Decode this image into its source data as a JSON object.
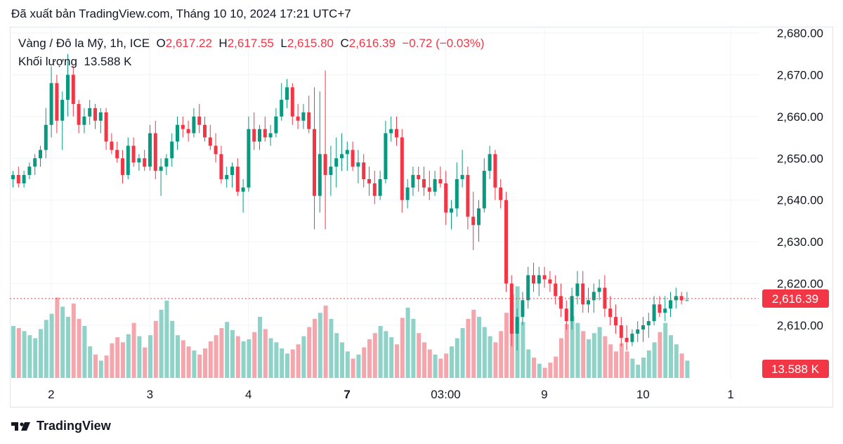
{
  "header": {
    "published": "Đã xuất bản TradingView.com, Tháng 10 10, 2024 17:21 UTC+7"
  },
  "legend": {
    "symbol": "Vàng / Đô la Mỹ, 1h, ICE",
    "o_label": "O",
    "o_value": "2,617.22",
    "h_label": "H",
    "h_value": "2,617.55",
    "l_label": "L",
    "l_value": "2,615.80",
    "c_label": "C",
    "c_value": "2,616.39",
    "change": "−0.72 (−0.03%)",
    "volume_label": "Khối lượng",
    "volume_value": "13.588 K"
  },
  "brand": {
    "name": "TradingView"
  },
  "colors": {
    "up": "#089981",
    "down": "#f23645",
    "up_vol": "#8fd3c8",
    "down_vol": "#f5a6ad",
    "grid": "#f0f3fa"
  },
  "chart_data": {
    "type": "candlestick",
    "title": "Vàng / Đô la Mỹ, 1h, ICE",
    "ylim": [
      2600,
      2684
    ],
    "y_ticks": [
      "2,680.00",
      "2,670.00",
      "2,660.00",
      "2,650.00",
      "2,640.00",
      "2,630.00",
      "2,620.00",
      "2,610.00"
    ],
    "y_tick_values": [
      2680,
      2670,
      2660,
      2650,
      2640,
      2630,
      2620,
      2610
    ],
    "x_ticks": [
      {
        "label": "2",
        "index": 8,
        "bold": false
      },
      {
        "label": "3",
        "index": 26,
        "bold": false
      },
      {
        "label": "4",
        "index": 44,
        "bold": false
      },
      {
        "label": "7",
        "index": 62,
        "bold": true
      },
      {
        "label": "03:00",
        "index": 80,
        "bold": false
      },
      {
        "label": "9",
        "index": 98,
        "bold": false
      },
      {
        "label": "10",
        "index": 116,
        "bold": false
      },
      {
        "label": "1",
        "index": 132,
        "bold": false
      }
    ],
    "last_price": 2616.39,
    "last_price_label": "2,616.39",
    "last_volume_label": "13.588 K",
    "candles": [
      [
        2645,
        2647,
        2643,
        2646,
        5.1
      ],
      [
        2646,
        2648,
        2643,
        2644,
        4.9
      ],
      [
        2644,
        2647,
        2643,
        2646,
        4.6
      ],
      [
        2646,
        2649,
        2645,
        2648,
        4.2
      ],
      [
        2648,
        2651,
        2646,
        2650,
        3.9
      ],
      [
        2650,
        2653,
        2648,
        2652,
        4.8
      ],
      [
        2652,
        2662,
        2650,
        2658,
        5.7
      ],
      [
        2658,
        2672,
        2655,
        2668,
        6.3
      ],
      [
        2668,
        2670,
        2656,
        2659,
        7.9
      ],
      [
        2659,
        2666,
        2652,
        2664,
        7.0
      ],
      [
        2664,
        2675,
        2660,
        2670,
        6.0
      ],
      [
        2670,
        2672,
        2660,
        2663,
        7.3
      ],
      [
        2663,
        2664,
        2656,
        2658,
        5.8
      ],
      [
        2658,
        2662,
        2656,
        2660,
        5.1
      ],
      [
        2660,
        2664,
        2658,
        2662,
        3.1
      ],
      [
        2662,
        2663,
        2657,
        2659,
        2.3
      ],
      [
        2659,
        2662,
        2656,
        2661,
        1.7
      ],
      [
        2661,
        2662,
        2652,
        2654,
        2.2
      ],
      [
        2654,
        2656,
        2651,
        2652,
        3.4
      ],
      [
        2652,
        2654,
        2649,
        2650,
        4.0
      ],
      [
        2650,
        2652,
        2644,
        2646,
        3.5
      ],
      [
        2646,
        2655,
        2645,
        2653,
        4.3
      ],
      [
        2653,
        2655,
        2648,
        2649,
        5.4
      ],
      [
        2649,
        2651,
        2647,
        2650,
        4.1
      ],
      [
        2650,
        2652,
        2647,
        2648,
        3.0
      ],
      [
        2648,
        2658,
        2647,
        2656,
        4.2
      ],
      [
        2656,
        2659,
        2645,
        2647,
        5.6
      ],
      [
        2647,
        2650,
        2641,
        2648,
        6.7
      ],
      [
        2648,
        2651,
        2646,
        2650,
        7.6
      ],
      [
        2650,
        2656,
        2648,
        2654,
        5.6
      ],
      [
        2654,
        2660,
        2652,
        2658,
        4.2
      ],
      [
        2658,
        2660,
        2655,
        2657,
        3.7
      ],
      [
        2657,
        2659,
        2654,
        2656,
        3.1
      ],
      [
        2656,
        2662,
        2655,
        2660,
        2.7
      ],
      [
        2660,
        2663,
        2656,
        2658,
        2.3
      ],
      [
        2658,
        2660,
        2654,
        2655,
        2.9
      ],
      [
        2655,
        2658,
        2652,
        2653,
        3.6
      ],
      [
        2653,
        2656,
        2649,
        2651,
        4.2
      ],
      [
        2651,
        2653,
        2644,
        2645,
        4.9
      ],
      [
        2645,
        2648,
        2643,
        2646,
        5.5
      ],
      [
        2646,
        2649,
        2643,
        2648,
        4.7
      ],
      [
        2648,
        2650,
        2641,
        2642,
        4.1
      ],
      [
        2642,
        2645,
        2637,
        2643,
        3.6
      ],
      [
        2643,
        2660,
        2642,
        2657,
        3.8
      ],
      [
        2657,
        2661,
        2652,
        2654,
        4.5
      ],
      [
        2654,
        2658,
        2652,
        2657,
        6.0
      ],
      [
        2657,
        2660,
        2654,
        2655,
        4.8
      ],
      [
        2655,
        2658,
        2653,
        2656,
        3.9
      ],
      [
        2656,
        2662,
        2655,
        2660,
        3.5
      ],
      [
        2660,
        2668,
        2659,
        2664,
        2.9
      ],
      [
        2664,
        2669,
        2662,
        2667,
        2.4
      ],
      [
        2667,
        2668,
        2658,
        2660,
        2.8
      ],
      [
        2660,
        2663,
        2657,
        2659,
        3.3
      ],
      [
        2659,
        2663,
        2657,
        2661,
        4.1
      ],
      [
        2661,
        2665,
        2656,
        2657,
        5.0
      ],
      [
        2657,
        2667,
        2633,
        2641,
        5.8
      ],
      [
        2641,
        2666,
        2637,
        2651,
        6.4
      ],
      [
        2651,
        2671,
        2633,
        2646,
        7.1
      ],
      [
        2646,
        2653,
        2641,
        2648,
        5.8
      ],
      [
        2648,
        2655,
        2643,
        2650,
        4.4
      ],
      [
        2650,
        2656,
        2647,
        2651,
        3.5
      ],
      [
        2651,
        2654,
        2647,
        2652,
        2.6
      ],
      [
        2652,
        2654,
        2647,
        2648,
        1.9
      ],
      [
        2648,
        2652,
        2644,
        2649,
        2.3
      ],
      [
        2649,
        2651,
        2643,
        2645,
        3.0
      ],
      [
        2645,
        2648,
        2641,
        2644,
        3.8
      ],
      [
        2644,
        2647,
        2639,
        2641,
        4.4
      ],
      [
        2641,
        2647,
        2640,
        2645,
        5.1
      ],
      [
        2645,
        2659,
        2644,
        2656,
        4.6
      ],
      [
        2656,
        2660,
        2654,
        2657,
        4.0
      ],
      [
        2657,
        2660,
        2653,
        2655,
        3.3
      ],
      [
        2655,
        2657,
        2637,
        2640,
        5.9
      ],
      [
        2640,
        2645,
        2638,
        2643,
        6.9
      ],
      [
        2643,
        2648,
        2641,
        2646,
        5.8
      ],
      [
        2646,
        2648,
        2642,
        2645,
        4.4
      ],
      [
        2645,
        2648,
        2641,
        2643,
        3.5
      ],
      [
        2643,
        2647,
        2640,
        2642,
        2.8
      ],
      [
        2642,
        2647,
        2641,
        2645,
        2.3
      ],
      [
        2645,
        2648,
        2643,
        2644,
        1.9
      ],
      [
        2644,
        2647,
        2634,
        2637,
        2.4
      ],
      [
        2637,
        2640,
        2633,
        2638,
        3.1
      ],
      [
        2638,
        2649,
        2636,
        2645,
        3.9
      ],
      [
        2645,
        2652,
        2643,
        2646,
        4.9
      ],
      [
        2646,
        2648,
        2633,
        2636,
        5.8
      ],
      [
        2636,
        2642,
        2628,
        2634,
        6.7
      ],
      [
        2634,
        2640,
        2630,
        2638,
        6.0
      ],
      [
        2638,
        2650,
        2637,
        2647,
        5.0
      ],
      [
        2647,
        2653,
        2645,
        2651,
        4.1
      ],
      [
        2651,
        2652,
        2640,
        2643,
        3.5
      ],
      [
        2643,
        2645,
        2638,
        2640,
        4.6
      ],
      [
        2640,
        2642,
        2618,
        2620,
        6.4
      ],
      [
        2620,
        2622,
        2605,
        2608,
        8.2
      ],
      [
        2608,
        2614,
        2604,
        2612,
        9.0
      ],
      [
        2612,
        2618,
        2610,
        2616,
        5.5
      ],
      [
        2616,
        2624,
        2614,
        2622,
        2.8
      ],
      [
        2622,
        2625,
        2618,
        2620,
        2.0
      ],
      [
        2620,
        2624,
        2617,
        2622,
        1.4
      ],
      [
        2622,
        2624,
        2619,
        2621,
        1.0
      ],
      [
        2621,
        2623,
        2618,
        2620,
        1.5
      ],
      [
        2620,
        2622,
        2615,
        2617,
        2.1
      ],
      [
        2617,
        2620,
        2612,
        2614,
        3.9
      ],
      [
        2614,
        2616,
        2609,
        2611,
        5.3
      ],
      [
        2611,
        2619,
        2609,
        2617,
        6.1
      ],
      [
        2617,
        2623,
        2615,
        2620,
        5.4
      ],
      [
        2620,
        2623,
        2613,
        2615,
        4.6
      ],
      [
        2615,
        2619,
        2613,
        2616,
        3.8
      ],
      [
        2616,
        2620,
        2613,
        2618,
        4.4
      ],
      [
        2618,
        2621,
        2616,
        2619,
        5.0
      ],
      [
        2619,
        2622,
        2612,
        2614,
        4.1
      ],
      [
        2614,
        2617,
        2610,
        2612,
        3.3
      ],
      [
        2612,
        2615,
        2608,
        2610,
        2.6
      ],
      [
        2610,
        2612,
        2605,
        2607,
        3.4
      ],
      [
        2607,
        2610,
        2604,
        2606,
        2.6
      ],
      [
        2606,
        2609,
        2605,
        2608,
        1.9
      ],
      [
        2608,
        2611,
        2606,
        2609,
        1.3
      ],
      [
        2609,
        2612,
        2606,
        2610,
        2.0
      ],
      [
        2610,
        2613,
        2607,
        2611,
        2.7
      ],
      [
        2611,
        2617,
        2610,
        2615,
        3.5
      ],
      [
        2615,
        2617,
        2612,
        2613,
        4.5
      ],
      [
        2613,
        2617,
        2611,
        2614,
        5.4
      ],
      [
        2614,
        2618,
        2612,
        2616,
        4.2
      ],
      [
        2616,
        2619,
        2614,
        2617,
        3.3
      ],
      [
        2617,
        2618,
        2615,
        2616,
        2.4
      ],
      [
        2616,
        2618,
        2616,
        2616,
        1.7
      ]
    ]
  }
}
